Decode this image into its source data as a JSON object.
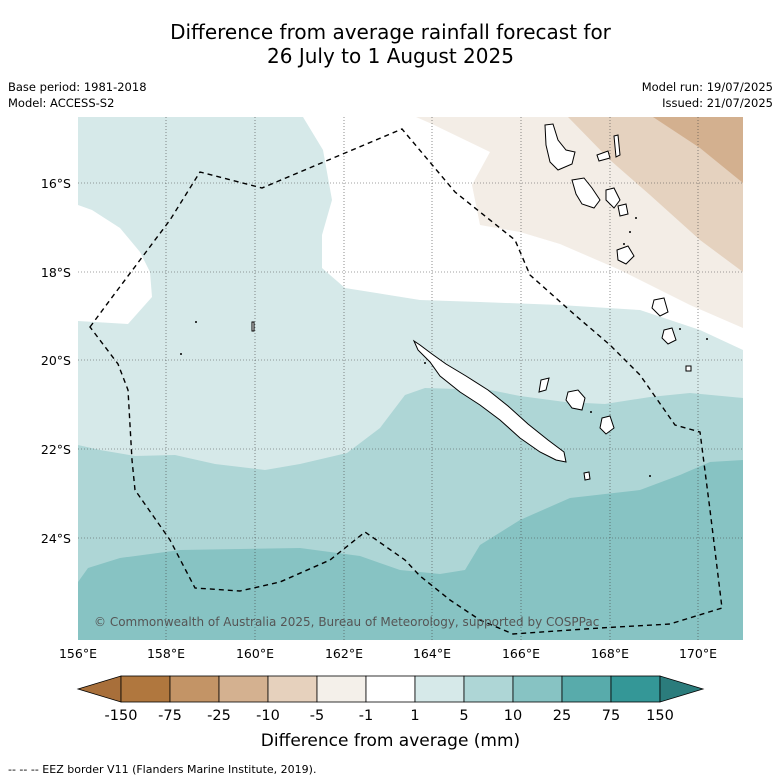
{
  "title": {
    "line1": "Difference from average rainfall forecast for",
    "line2": "26 July to 1 August 2025"
  },
  "meta": {
    "base_period": "Base period: 1981-2018",
    "model": "Model: ACCESS-S2",
    "model_run": "Model run: 19/07/2025",
    "issued": "Issued: 21/07/2025"
  },
  "map": {
    "lon_labels": [
      "156°E",
      "158°E",
      "160°E",
      "162°E",
      "164°E",
      "166°E",
      "168°E",
      "170°E"
    ],
    "lat_labels": [
      "16°S",
      "18°S",
      "20°S",
      "22°S",
      "24°S"
    ],
    "copyright": "© Commonwealth of Australia 2025, Bureau of Meteorology, supported by COSPPac"
  },
  "colorbar": {
    "labels": [
      "-150",
      "-75",
      "-25",
      "-10",
      "-5",
      "-1",
      "1",
      "5",
      "10",
      "25",
      "75",
      "150"
    ],
    "colors": [
      "#a86f3a",
      "#b0773e",
      "#c39466",
      "#d4b190",
      "#e6d1bd",
      "#f4f0ea",
      "#ffffff",
      "#d6e9e9",
      "#aed6d6",
      "#87c3c3",
      "#58abab",
      "#349797",
      "#2b7c7c"
    ],
    "title": "Difference from average (mm)"
  },
  "footnote": "--  --  -- EEZ border V11 (Flanders Marine Institute, 2019)."
}
